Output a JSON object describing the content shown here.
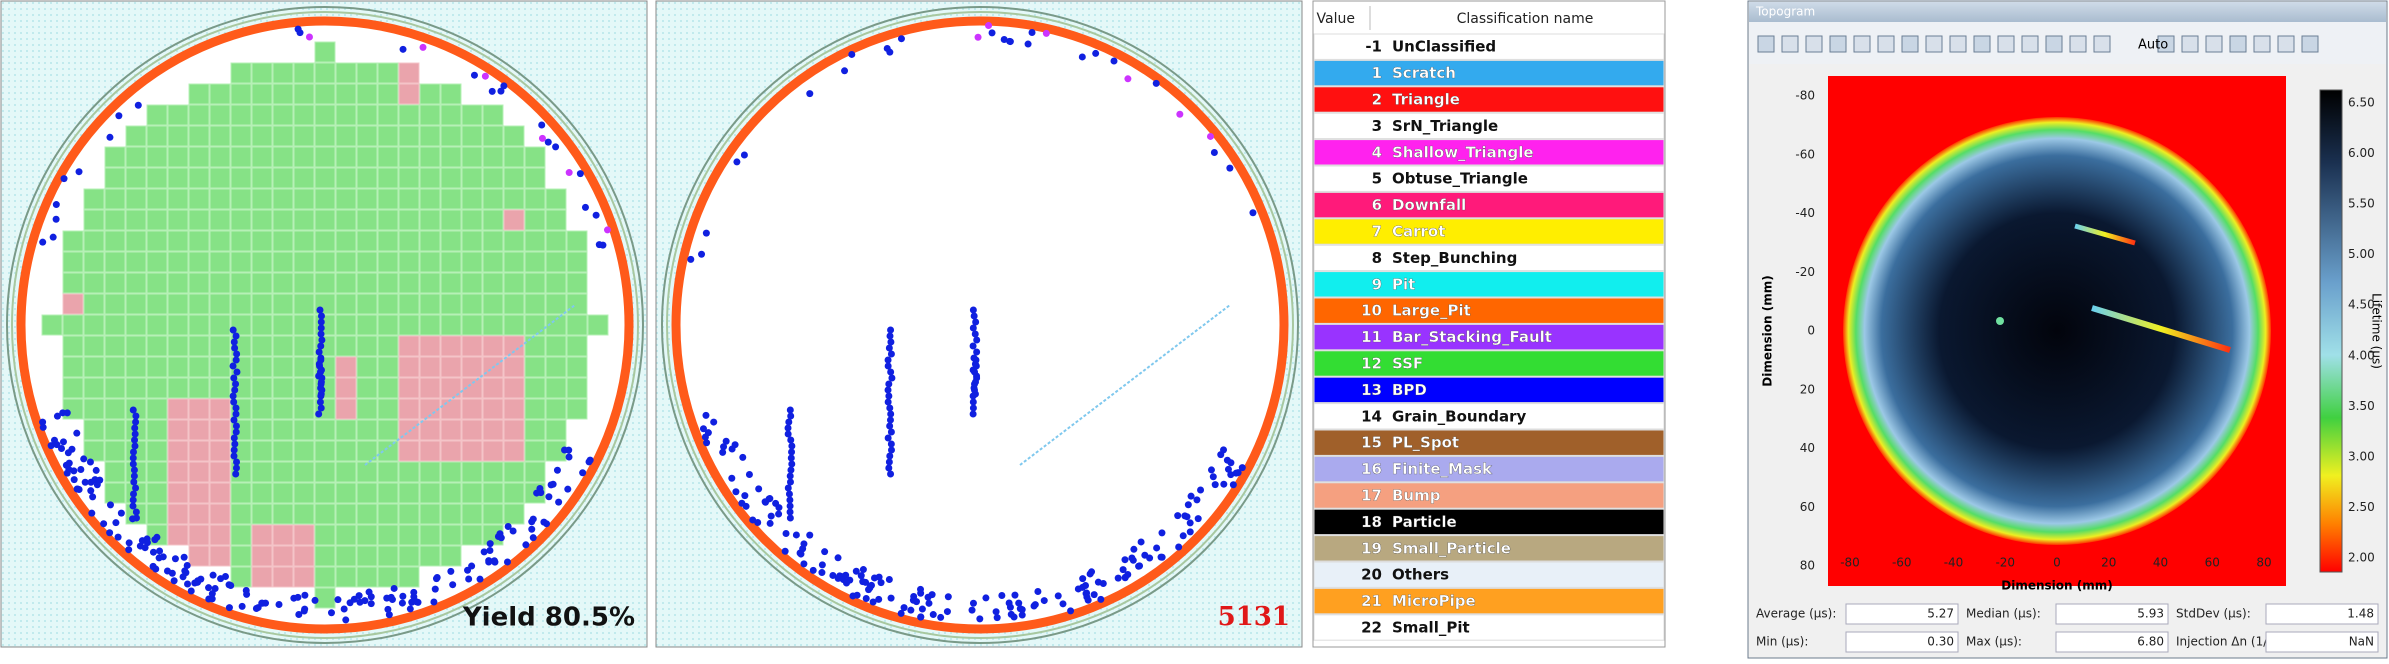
{
  "wafer_maps": [
    {
      "caption": "Yield 80.5%"
    },
    {
      "caption": "5131"
    }
  ],
  "legend": {
    "headers": [
      "Value",
      "Classification name"
    ],
    "rows": [
      {
        "value": -1,
        "name": "UnClassified",
        "color": "#ffffff"
      },
      {
        "value": 1,
        "name": "Scratch",
        "color": "#33aaee"
      },
      {
        "value": 2,
        "name": "Triangle",
        "color": "#ff1010"
      },
      {
        "value": 3,
        "name": "SrN_Triangle",
        "color": "#ffffff"
      },
      {
        "value": 4,
        "name": "Shallow_Triangle",
        "color": "#ff22ee"
      },
      {
        "value": 5,
        "name": "Obtuse_Triangle",
        "color": "#ffffff"
      },
      {
        "value": 6,
        "name": "Downfall",
        "color": "#ff1a7a"
      },
      {
        "value": 7,
        "name": "Carrot",
        "color": "#ffee00"
      },
      {
        "value": 8,
        "name": "Step_Bunching",
        "color": "#ffffff"
      },
      {
        "value": 9,
        "name": "Pit",
        "color": "#11eeee"
      },
      {
        "value": 10,
        "name": "Large_Pit",
        "color": "#ff6600"
      },
      {
        "value": 11,
        "name": "Bar_Stacking_Fault",
        "color": "#9933ff"
      },
      {
        "value": 12,
        "name": "SSF",
        "color": "#33dd33"
      },
      {
        "value": 13,
        "name": "BPD",
        "color": "#0000ff"
      },
      {
        "value": 14,
        "name": "Grain_Boundary",
        "color": "#ffffff"
      },
      {
        "value": 15,
        "name": "PL_Spot",
        "color": "#a0602a"
      },
      {
        "value": 16,
        "name": "Finite_Mask",
        "color": "#aaaaee"
      },
      {
        "value": 17,
        "name": "Bump",
        "color": "#f5a080"
      },
      {
        "value": 18,
        "name": "Particle",
        "color": "#000000"
      },
      {
        "value": 19,
        "name": "Small_Particle",
        "color": "#b8a880"
      },
      {
        "value": 20,
        "name": "Others",
        "color": "#e8f0f8"
      },
      {
        "value": 21,
        "name": "MicroPipe",
        "color": "#ffa020"
      },
      {
        "value": 22,
        "name": "Small_Pit",
        "color": "#ffffff"
      }
    ]
  },
  "topogram": {
    "title": "Topogram",
    "zoom_mode": "Auto",
    "y_ticks": [
      -80,
      -60,
      -40,
      -20,
      0,
      20,
      40,
      60,
      80
    ],
    "x_ticks": [
      -80,
      -60,
      -40,
      -20,
      0,
      20,
      40,
      60,
      80
    ],
    "x_label": "Dimension (mm)",
    "y_label": "Dimension (mm)",
    "colorbar_label": "Lifetime (µs)",
    "colorbar_ticks": [
      {
        "value": 6.5,
        "label": "6.50"
      },
      {
        "value": 6,
        "label": "6.00"
      },
      {
        "value": 5.5,
        "label": "5.50"
      },
      {
        "value": 5,
        "label": "5.00"
      },
      {
        "value": 4.5,
        "label": "4.50"
      },
      {
        "value": 4,
        "label": "4.00"
      },
      {
        "value": 3.5,
        "label": "3.50"
      },
      {
        "value": 3,
        "label": "3.00"
      },
      {
        "value": 2.5,
        "label": "2.50"
      },
      {
        "value": 2,
        "label": "2.00"
      }
    ],
    "stats": [
      {
        "label": "Average (µs):",
        "value": 5.27
      },
      {
        "label": "Median (µs):",
        "value": 5.93
      },
      {
        "label": "StdDev (µs):",
        "value": 1.48
      },
      {
        "label": "Min (µs):",
        "value": {
          "value": 0.3,
          "label": "0.30"
        }
      },
      {
        "label": "Max (µs):",
        "value": {
          "value": 6.8,
          "label": "6.80"
        }
      },
      {
        "label": "Injection Δn (1/",
        "value": "NaN"
      }
    ]
  }
}
